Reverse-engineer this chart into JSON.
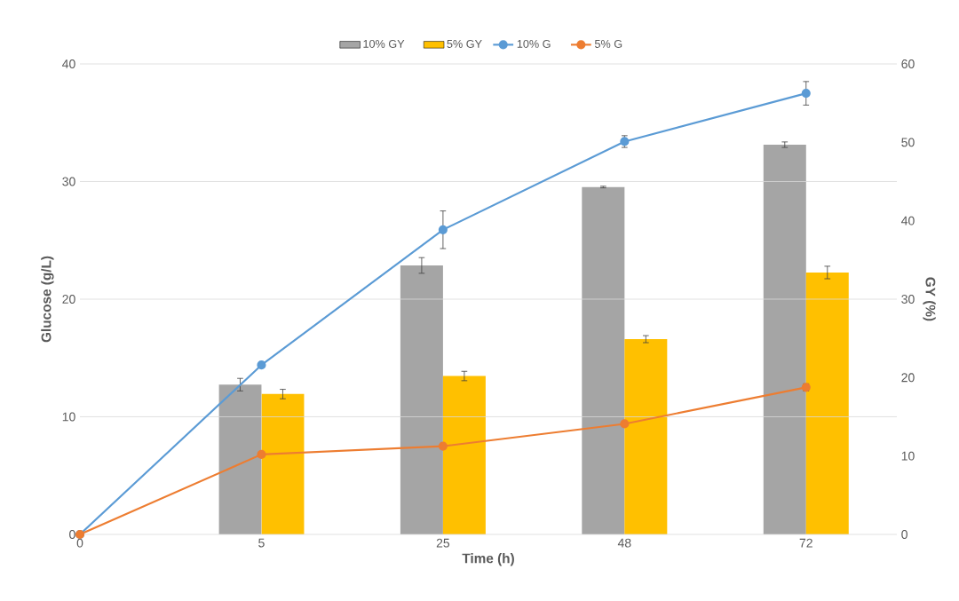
{
  "chart_data": {
    "type": "bar",
    "xlabel": "Time (h)",
    "ylabel": "Glucose (g/L)",
    "y2label": "GY (%)",
    "categories": [
      "0",
      "5",
      "25",
      "48",
      "72"
    ],
    "ylim": [
      0,
      40
    ],
    "yticks": [
      0,
      10,
      20,
      30,
      40
    ],
    "y2lim": [
      0,
      60
    ],
    "y2ticks": [
      0,
      10,
      20,
      30,
      40,
      50,
      60
    ],
    "grid": "y",
    "legend": "top",
    "series": [
      {
        "name": "10% GY",
        "axis": "y2",
        "color": "#a5a5a5",
        "values": [
          null,
          19.1,
          34.3,
          44.3,
          49.7
        ],
        "errors": [
          null,
          0.8,
          1.0,
          0.1,
          0.35
        ]
      },
      {
        "name": "5% GY",
        "axis": "y2",
        "color": "#ffc000",
        "values": [
          null,
          17.9,
          20.2,
          24.9,
          33.4
        ],
        "errors": [
          null,
          0.6,
          0.6,
          0.45,
          0.8
        ]
      },
      {
        "name": "10% G",
        "type": "line",
        "axis": "y",
        "marker": "circle",
        "color": "#5b9bd5",
        "values": [
          0,
          14.4,
          25.9,
          33.4,
          37.5
        ],
        "errors": [
          null,
          null,
          1.6,
          0.5,
          1.0
        ]
      },
      {
        "name": "5% G",
        "type": "line",
        "axis": "y",
        "marker": "circle",
        "color": "#ed7d31",
        "values": [
          0,
          6.8,
          7.5,
          9.4,
          12.5
        ],
        "errors": [
          null,
          null,
          null,
          null,
          0.3
        ]
      }
    ]
  }
}
